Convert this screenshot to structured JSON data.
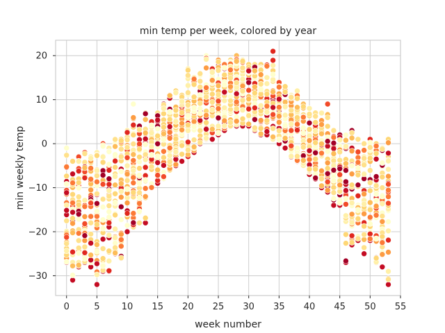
{
  "chart_data": {
    "type": "scatter",
    "title": "min temp per week, colored by year",
    "xlabel": "week number",
    "ylabel": "min weekly temp",
    "xlim": [
      -1.8,
      55
    ],
    "ylim": [
      -34.5,
      23.5
    ],
    "xticks": [
      0,
      5,
      10,
      15,
      20,
      25,
      30,
      35,
      40,
      45,
      50,
      55
    ],
    "yticks": [
      -30,
      -20,
      -10,
      0,
      10,
      20
    ],
    "grid": true,
    "palette": [
      "#ffffcc",
      "#fff0a8",
      "#ffe18b",
      "#fed776",
      "#fdbc58",
      "#fd9c42",
      "#fc7a36",
      "#f24a29",
      "#e0271e",
      "#c40c23",
      "#a30026"
    ],
    "weekly_summary": [
      {
        "week": 0,
        "min": -27,
        "q1": -20,
        "median": -15,
        "q3": -8,
        "max": -1
      },
      {
        "week": 1,
        "min": -31,
        "q1": -22,
        "median": -16,
        "q3": -10,
        "max": -4
      },
      {
        "week": 2,
        "min": -28,
        "q1": -21,
        "median": -15,
        "q3": -10,
        "max": -3
      },
      {
        "week": 3,
        "min": -27,
        "q1": -19,
        "median": -13,
        "q3": -8,
        "max": -2
      },
      {
        "week": 4,
        "min": -28,
        "q1": -20,
        "median": -14,
        "q3": -9,
        "max": -3
      },
      {
        "week": 5,
        "min": -32,
        "q1": -20,
        "median": -13,
        "q3": -7,
        "max": -2
      },
      {
        "week": 6,
        "min": -29,
        "q1": -18,
        "median": -12,
        "q3": -6,
        "max": 0
      },
      {
        "week": 7,
        "min": -29,
        "q1": -18,
        "median": -11,
        "q3": -5,
        "max": -1
      },
      {
        "week": 8,
        "min": -25,
        "q1": -17,
        "median": -10,
        "q3": -4,
        "max": 1
      },
      {
        "week": 9,
        "min": -26,
        "q1": -15,
        "median": -8,
        "q3": -3,
        "max": 1
      },
      {
        "week": 10,
        "min": -20,
        "q1": -14,
        "median": -7,
        "q3": -2,
        "max": 3
      },
      {
        "week": 11,
        "min": -19,
        "q1": -12,
        "median": -6,
        "q3": -1,
        "max": 9
      },
      {
        "week": 12,
        "min": -18,
        "q1": -10,
        "median": -5,
        "q3": 0,
        "max": 4
      },
      {
        "week": 13,
        "min": -18,
        "q1": -9,
        "median": -3,
        "q3": 1,
        "max": 7
      },
      {
        "week": 14,
        "min": -10,
        "q1": -6,
        "median": -2,
        "q3": 2,
        "max": 5
      },
      {
        "week": 15,
        "min": -9,
        "q1": -5,
        "median": 0,
        "q3": 3,
        "max": 7
      },
      {
        "week": 16,
        "min": -8,
        "q1": -4,
        "median": 1,
        "q3": 4,
        "max": 9
      },
      {
        "week": 17,
        "min": -6,
        "q1": -2,
        "median": 2,
        "q3": 6,
        "max": 11
      },
      {
        "week": 18,
        "min": -5,
        "q1": -1,
        "median": 3,
        "q3": 7,
        "max": 12
      },
      {
        "week": 19,
        "min": -4,
        "q1": 0,
        "median": 4,
        "q3": 8,
        "max": 11
      },
      {
        "week": 20,
        "min": -3,
        "q1": 2,
        "median": 5,
        "q3": 9,
        "max": 17
      },
      {
        "week": 21,
        "min": -2,
        "q1": 3,
        "median": 6,
        "q3": 10,
        "max": 15
      },
      {
        "week": 22,
        "min": 0,
        "q1": 4,
        "median": 7,
        "q3": 11,
        "max": 16
      },
      {
        "week": 23,
        "min": 1,
        "q1": 5,
        "median": 8,
        "q3": 12,
        "max": 20
      },
      {
        "week": 24,
        "min": 1,
        "q1": 6,
        "median": 9,
        "q3": 13,
        "max": 17
      },
      {
        "week": 25,
        "min": 2,
        "q1": 6,
        "median": 10,
        "q3": 14,
        "max": 19
      },
      {
        "week": 26,
        "min": 3,
        "q1": 7,
        "median": 11,
        "q3": 14,
        "max": 18
      },
      {
        "week": 27,
        "min": 4,
        "q1": 8,
        "median": 11,
        "q3": 15,
        "max": 19
      },
      {
        "week": 28,
        "min": 4,
        "q1": 8,
        "median": 12,
        "q3": 15,
        "max": 20
      },
      {
        "week": 29,
        "min": 4,
        "q1": 8,
        "median": 12,
        "q3": 15,
        "max": 19
      },
      {
        "week": 30,
        "min": 4,
        "q1": 8,
        "median": 11,
        "q3": 15,
        "max": 18
      },
      {
        "week": 31,
        "min": 3,
        "q1": 7,
        "median": 11,
        "q3": 14,
        "max": 18
      },
      {
        "week": 32,
        "min": 2,
        "q1": 6,
        "median": 10,
        "q3": 14,
        "max": 18
      },
      {
        "week": 33,
        "min": 2,
        "q1": 6,
        "median": 9,
        "q3": 13,
        "max": 18
      },
      {
        "week": 34,
        "min": 1,
        "q1": 5,
        "median": 8,
        "q3": 12,
        "max": 21
      },
      {
        "week": 35,
        "min": 0,
        "q1": 4,
        "median": 7,
        "q3": 11,
        "max": 14
      },
      {
        "week": 36,
        "min": -1,
        "q1": 3,
        "median": 6,
        "q3": 9,
        "max": 13
      },
      {
        "week": 37,
        "min": -3,
        "q1": 1,
        "median": 4,
        "q3": 8,
        "max": 11
      },
      {
        "week": 38,
        "min": -4,
        "q1": 0,
        "median": 3,
        "q3": 6,
        "max": 12
      },
      {
        "week": 39,
        "min": -5,
        "q1": -2,
        "median": 1,
        "q3": 5,
        "max": 9
      },
      {
        "week": 40,
        "min": -7,
        "q1": -3,
        "median": 0,
        "q3": 3,
        "max": 8
      },
      {
        "week": 41,
        "min": -8,
        "q1": -4,
        "median": -2,
        "q3": 2,
        "max": 7
      },
      {
        "week": 42,
        "min": -10,
        "q1": -6,
        "median": -3,
        "q3": 1,
        "max": 7
      },
      {
        "week": 43,
        "min": -11,
        "q1": -7,
        "median": -4,
        "q3": 0,
        "max": 9
      },
      {
        "week": 44,
        "min": -14,
        "q1": -9,
        "median": -6,
        "q3": -2,
        "max": 3
      },
      {
        "week": 45,
        "min": -14,
        "q1": -10,
        "median": -7,
        "q3": -3,
        "max": 2
      },
      {
        "week": 46,
        "min": -27,
        "q1": -13,
        "median": -9,
        "q3": -5,
        "max": 2
      },
      {
        "week": 47,
        "min": -23,
        "q1": -15,
        "median": -10,
        "q3": -6,
        "max": 3
      },
      {
        "week": 48,
        "min": -22,
        "q1": -16,
        "median": -11,
        "q3": -7,
        "max": 1
      },
      {
        "week": 49,
        "min": -25,
        "q1": -17,
        "median": -12,
        "q3": -7,
        "max": 0
      },
      {
        "week": 50,
        "min": -22,
        "q1": -16,
        "median": -11,
        "q3": -6,
        "max": 1
      },
      {
        "week": 51,
        "min": -27,
        "q1": -18,
        "median": -12,
        "q3": -6,
        "max": 0
      },
      {
        "week": 52,
        "min": -28,
        "q1": -19,
        "median": -13,
        "q3": -7,
        "max": -1
      },
      {
        "week": 53,
        "min": -32,
        "q1": -18,
        "median": -13,
        "q3": -7,
        "max": 1
      }
    ]
  }
}
